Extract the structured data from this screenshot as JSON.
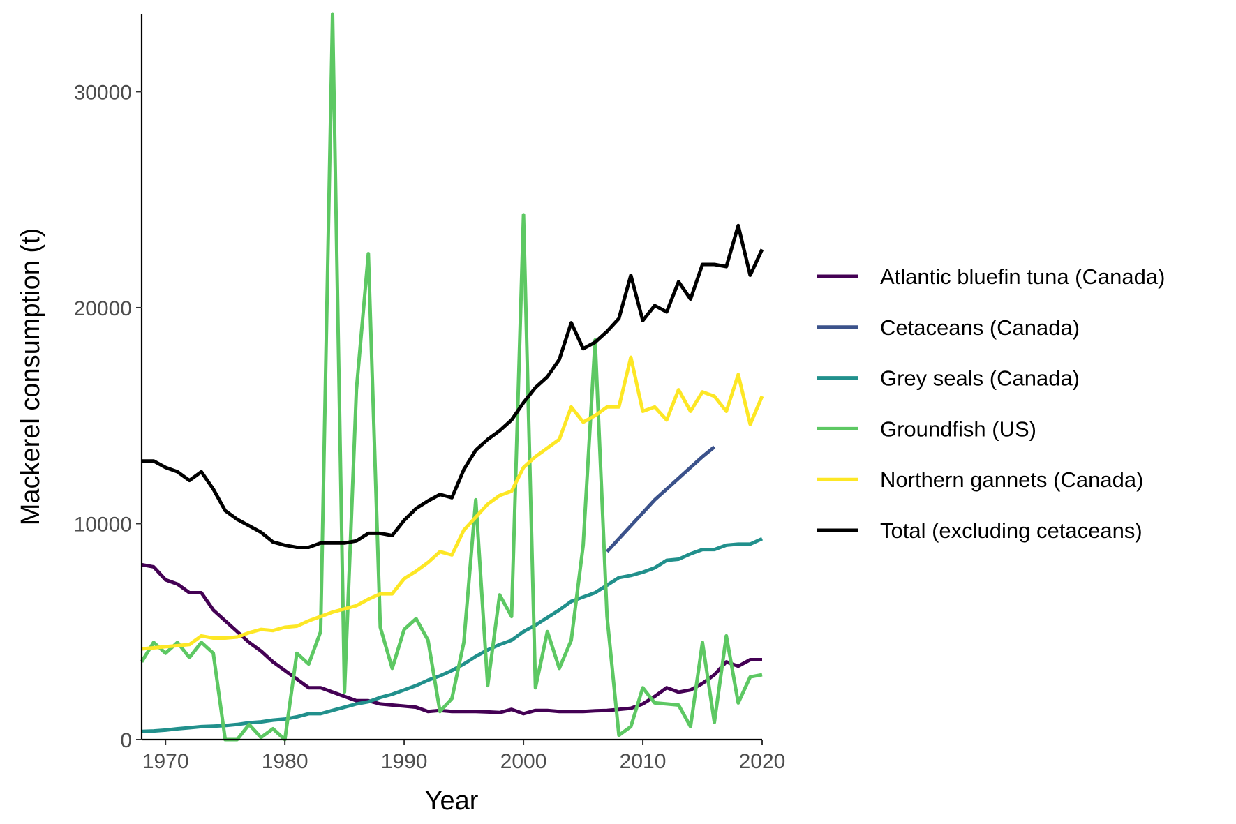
{
  "chart_data": {
    "type": "line",
    "title": "",
    "xlabel": "Year",
    "ylabel": "Mackerel consumption (t)",
    "xlim": [
      1968,
      2020
    ],
    "ylim": [
      0,
      33600
    ],
    "xticks": [
      1970,
      1980,
      1990,
      2000,
      2010,
      2020
    ],
    "yticks": [
      0,
      10000,
      20000,
      30000
    ],
    "grid": false,
    "legend_position": "right",
    "series": [
      {
        "name": "Atlantic bluefin tuna (Canada)",
        "color": "#440154",
        "x": [
          1968,
          1969,
          1970,
          1971,
          1972,
          1973,
          1974,
          1975,
          1976,
          1977,
          1978,
          1979,
          1980,
          1981,
          1982,
          1983,
          1984,
          1985,
          1986,
          1987,
          1988,
          1989,
          1990,
          1991,
          1992,
          1993,
          1994,
          1995,
          1996,
          1997,
          1998,
          1999,
          2000,
          2001,
          2002,
          2003,
          2004,
          2005,
          2006,
          2007,
          2008,
          2009,
          2010,
          2011,
          2012,
          2013,
          2014,
          2015,
          2016,
          2017,
          2018,
          2019,
          2020
        ],
        "y": [
          8100,
          8000,
          7400,
          7200,
          6800,
          6800,
          6000,
          5500,
          5000,
          4500,
          4100,
          3600,
          3200,
          2800,
          2400,
          2400,
          2200,
          2000,
          1800,
          1800,
          1650,
          1600,
          1550,
          1500,
          1300,
          1350,
          1300,
          1300,
          1300,
          1280,
          1250,
          1400,
          1200,
          1350,
          1350,
          1300,
          1300,
          1300,
          1330,
          1350,
          1400,
          1450,
          1650,
          2000,
          2400,
          2200,
          2300,
          2600,
          3000,
          3600,
          3400,
          3700,
          3700
        ]
      },
      {
        "name": "Cetaceans (Canada)",
        "color": "#3b528b",
        "x": [
          2007,
          2008,
          2009,
          2010,
          2011,
          2012,
          2013,
          2014,
          2015,
          2016
        ],
        "y": [
          8700,
          9300,
          9900,
          10500,
          11100,
          11600,
          12100,
          12600,
          13100,
          13550
        ]
      },
      {
        "name": "Grey seals (Canada)",
        "color": "#21908c",
        "x": [
          1968,
          1969,
          1970,
          1971,
          1972,
          1973,
          1974,
          1975,
          1976,
          1977,
          1978,
          1979,
          1980,
          1981,
          1982,
          1983,
          1984,
          1985,
          1986,
          1987,
          1988,
          1989,
          1990,
          1991,
          1992,
          1993,
          1994,
          1995,
          1996,
          1997,
          1998,
          1999,
          2000,
          2001,
          2002,
          2003,
          2004,
          2005,
          2006,
          2007,
          2008,
          2009,
          2010,
          2011,
          2012,
          2013,
          2014,
          2015,
          2016,
          2017,
          2018,
          2019,
          2020
        ],
        "y": [
          380,
          400,
          440,
          500,
          550,
          600,
          620,
          650,
          700,
          780,
          820,
          900,
          950,
          1050,
          1200,
          1200,
          1350,
          1500,
          1650,
          1750,
          1950,
          2100,
          2300,
          2500,
          2750,
          2950,
          3200,
          3500,
          3850,
          4150,
          4400,
          4600,
          5000,
          5300,
          5650,
          6000,
          6400,
          6600,
          6800,
          7150,
          7500,
          7600,
          7750,
          7950,
          8300,
          8350,
          8600,
          8800,
          8800,
          9000,
          9050,
          9050,
          9300
        ]
      },
      {
        "name": "Groundfish (US)",
        "color": "#5dc863",
        "x": [
          1968,
          1969,
          1970,
          1971,
          1972,
          1973,
          1974,
          1975,
          1976,
          1977,
          1978,
          1979,
          1980,
          1981,
          1982,
          1983,
          1984,
          1985,
          1986,
          1987,
          1988,
          1989,
          1990,
          1991,
          1992,
          1993,
          1994,
          1995,
          1996,
          1997,
          1998,
          1999,
          2000,
          2001,
          2002,
          2003,
          2004,
          2005,
          2006,
          2007,
          2008,
          2009,
          2010,
          2011,
          2012,
          2013,
          2014,
          2015,
          2016,
          2017,
          2018,
          2019,
          2020
        ],
        "y": [
          3600,
          4500,
          4000,
          4500,
          3800,
          4500,
          4000,
          0,
          0,
          700,
          100,
          500,
          0,
          4000,
          3500,
          5000,
          33600,
          2200,
          16200,
          22500,
          5200,
          3300,
          5100,
          5600,
          4600,
          1300,
          1900,
          4500,
          11100,
          2500,
          6700,
          5700,
          24300,
          2400,
          5000,
          3300,
          4600,
          9000,
          18500,
          5700,
          200,
          600,
          2400,
          1700,
          1650,
          1600,
          600,
          4500,
          800,
          4800,
          1700,
          2900,
          3000
        ]
      },
      {
        "name": "Northern gannets (Canada)",
        "color": "#fde725",
        "x": [
          1968,
          1969,
          1970,
          1971,
          1972,
          1973,
          1974,
          1975,
          1976,
          1977,
          1978,
          1979,
          1980,
          1981,
          1982,
          1983,
          1984,
          1985,
          1986,
          1987,
          1988,
          1989,
          1990,
          1991,
          1992,
          1993,
          1994,
          1995,
          1996,
          1997,
          1998,
          1999,
          2000,
          2001,
          2002,
          2003,
          2004,
          2005,
          2006,
          2007,
          2008,
          2009,
          2010,
          2011,
          2012,
          2013,
          2014,
          2015,
          2016,
          2017,
          2018,
          2019,
          2020
        ],
        "y": [
          4200,
          4250,
          4300,
          4350,
          4400,
          4800,
          4700,
          4700,
          4750,
          4950,
          5100,
          5050,
          5200,
          5250,
          5500,
          5700,
          5900,
          6050,
          6200,
          6500,
          6750,
          6750,
          7450,
          7800,
          8200,
          8700,
          8550,
          9700,
          10300,
          10900,
          11300,
          11500,
          12600,
          13100,
          13500,
          13900,
          15400,
          14700,
          15000,
          15400,
          15400,
          17700,
          15200,
          15400,
          14800,
          16200,
          15200,
          16100,
          15900,
          15200,
          16900,
          14600,
          15900
        ]
      },
      {
        "name": "Total (excluding cetaceans)",
        "color": "#000000",
        "x": [
          1968,
          1969,
          1970,
          1971,
          1972,
          1973,
          1974,
          1975,
          1976,
          1977,
          1978,
          1979,
          1980,
          1981,
          1982,
          1983,
          1984,
          1985,
          1986,
          1987,
          1988,
          1989,
          1990,
          1991,
          1992,
          1993,
          1994,
          1995,
          1996,
          1997,
          1998,
          1999,
          2000,
          2001,
          2002,
          2003,
          2004,
          2005,
          2006,
          2007,
          2008,
          2009,
          2010,
          2011,
          2012,
          2013,
          2014,
          2015,
          2016,
          2017,
          2018,
          2019,
          2020
        ],
        "y": [
          12900,
          12900,
          12600,
          12400,
          12000,
          12400,
          11600,
          10600,
          10200,
          9900,
          9600,
          9150,
          9000,
          8900,
          8900,
          9100,
          9100,
          9100,
          9200,
          9550,
          9550,
          9450,
          10150,
          10700,
          11050,
          11350,
          11200,
          12500,
          13400,
          13900,
          14300,
          14800,
          15600,
          16300,
          16800,
          17600,
          19300,
          18100,
          18400,
          18900,
          19500,
          21500,
          19400,
          20100,
          19800,
          21200,
          20400,
          22000,
          22000,
          21900,
          23800,
          21500,
          22700
        ]
      }
    ]
  }
}
